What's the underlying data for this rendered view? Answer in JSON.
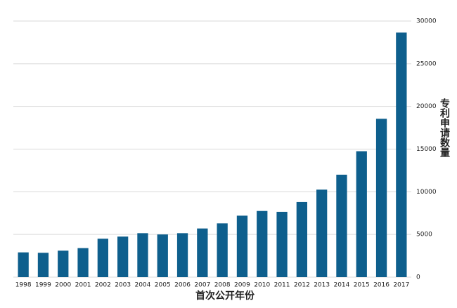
{
  "chart_data": {
    "type": "bar",
    "x_label": "首次公开年份",
    "y_label": "专利申请数量",
    "categories": [
      "1998",
      "1999",
      "2000",
      "2001",
      "2002",
      "2003",
      "2004",
      "2005",
      "2006",
      "2007",
      "2008",
      "2009",
      "2010",
      "2011",
      "2012",
      "2013",
      "2014",
      "2015",
      "2016",
      "2017"
    ],
    "values": [
      2900,
      2850,
      3100,
      3400,
      4500,
      4750,
      5150,
      5000,
      5150,
      5700,
      6300,
      7200,
      7750,
      7650,
      8800,
      10250,
      12000,
      14750,
      18550,
      28650
    ],
    "color": "#0e5f8d",
    "ylim": [
      0,
      30000
    ],
    "yticks": [
      0,
      5000,
      10000,
      15000,
      20000,
      25000,
      30000
    ],
    "grid": true
  }
}
